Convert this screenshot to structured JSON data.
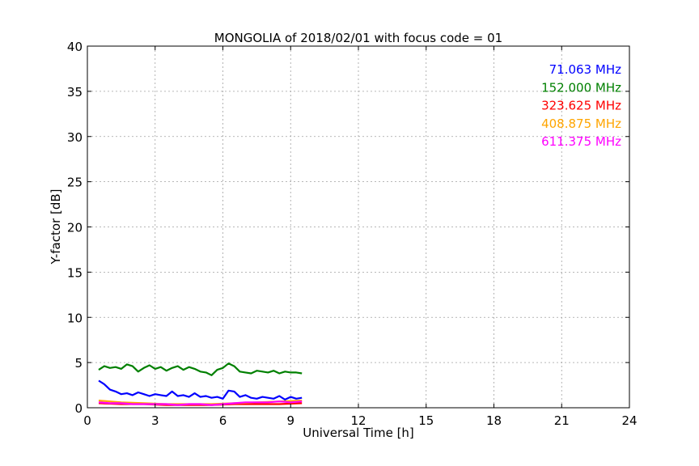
{
  "chart_data": {
    "type": "line",
    "title": "MONGOLIA of 2018/02/01 with focus code = 01",
    "xlabel": "Universal Time [h]",
    "ylabel": "Y-factor [dB]",
    "xlim": [
      0,
      24
    ],
    "ylim": [
      0,
      40
    ],
    "xticks": [
      "0",
      "3",
      "6",
      "9",
      "12",
      "15",
      "18",
      "21",
      "24"
    ],
    "yticks": [
      "0",
      "5",
      "10",
      "15",
      "20",
      "25",
      "30",
      "35",
      "40"
    ],
    "grid": true,
    "legend_placement": "top-right",
    "series": [
      {
        "name": "71.063 MHz",
        "color": "#0000ff",
        "x": [
          0.5,
          0.75,
          1.0,
          1.25,
          1.5,
          1.75,
          2.0,
          2.25,
          2.5,
          2.75,
          3.0,
          3.25,
          3.5,
          3.75,
          4.0,
          4.25,
          4.5,
          4.75,
          5.0,
          5.25,
          5.5,
          5.75,
          6.0,
          6.25,
          6.5,
          6.75,
          7.0,
          7.25,
          7.5,
          7.75,
          8.0,
          8.25,
          8.5,
          8.75,
          9.0,
          9.25,
          9.5
        ],
        "y": [
          3.0,
          2.6,
          2.0,
          1.8,
          1.5,
          1.6,
          1.4,
          1.7,
          1.5,
          1.3,
          1.5,
          1.4,
          1.3,
          1.8,
          1.3,
          1.4,
          1.2,
          1.6,
          1.2,
          1.3,
          1.1,
          1.2,
          1.0,
          1.9,
          1.8,
          1.2,
          1.4,
          1.1,
          1.0,
          1.2,
          1.1,
          1.0,
          1.3,
          0.9,
          1.2,
          1.0,
          1.1
        ]
      },
      {
        "name": "152.000 MHz",
        "color": "#008000",
        "x": [
          0.5,
          0.75,
          1.0,
          1.25,
          1.5,
          1.75,
          2.0,
          2.25,
          2.5,
          2.75,
          3.0,
          3.25,
          3.5,
          3.75,
          4.0,
          4.25,
          4.5,
          4.75,
          5.0,
          5.25,
          5.5,
          5.75,
          6.0,
          6.25,
          6.5,
          6.75,
          7.0,
          7.25,
          7.5,
          7.75,
          8.0,
          8.25,
          8.5,
          8.75,
          9.0,
          9.25,
          9.5
        ],
        "y": [
          4.2,
          4.6,
          4.4,
          4.5,
          4.3,
          4.8,
          4.6,
          4.0,
          4.4,
          4.7,
          4.3,
          4.5,
          4.1,
          4.4,
          4.6,
          4.2,
          4.5,
          4.3,
          4.0,
          3.9,
          3.6,
          4.2,
          4.4,
          4.9,
          4.6,
          4.0,
          3.9,
          3.8,
          4.1,
          4.0,
          3.9,
          4.1,
          3.8,
          4.0,
          3.9,
          3.9,
          3.8
        ]
      },
      {
        "name": "323.625 MHz",
        "color": "#ff0000",
        "x": [
          0.5,
          1.5,
          2.5,
          3.5,
          4.5,
          5.5,
          6.5,
          7.5,
          8.5,
          9.5
        ],
        "y": [
          0.5,
          0.4,
          0.4,
          0.3,
          0.3,
          0.3,
          0.4,
          0.4,
          0.4,
          0.5
        ]
      },
      {
        "name": "408.875 MHz",
        "color": "#ffa500",
        "x": [
          0.5,
          1.5,
          2.5,
          3.5,
          4.5,
          5.5,
          6.5,
          7.5,
          8.5,
          9.5
        ],
        "y": [
          0.8,
          0.6,
          0.5,
          0.4,
          0.4,
          0.4,
          0.5,
          0.6,
          0.7,
          0.8
        ]
      },
      {
        "name": "611.375 MHz",
        "color": "#ff00ff",
        "x": [
          0.5,
          1.0,
          1.5,
          2.0,
          2.5,
          3.0,
          3.5,
          4.0,
          4.5,
          5.0,
          5.5,
          6.0,
          6.5,
          7.0,
          7.5,
          8.0,
          8.5,
          9.0,
          9.5
        ],
        "y": [
          0.6,
          0.5,
          0.5,
          0.4,
          0.4,
          0.4,
          0.4,
          0.3,
          0.4,
          0.4,
          0.3,
          0.4,
          0.5,
          0.6,
          0.6,
          0.6,
          0.7,
          0.6,
          0.7
        ]
      }
    ]
  }
}
